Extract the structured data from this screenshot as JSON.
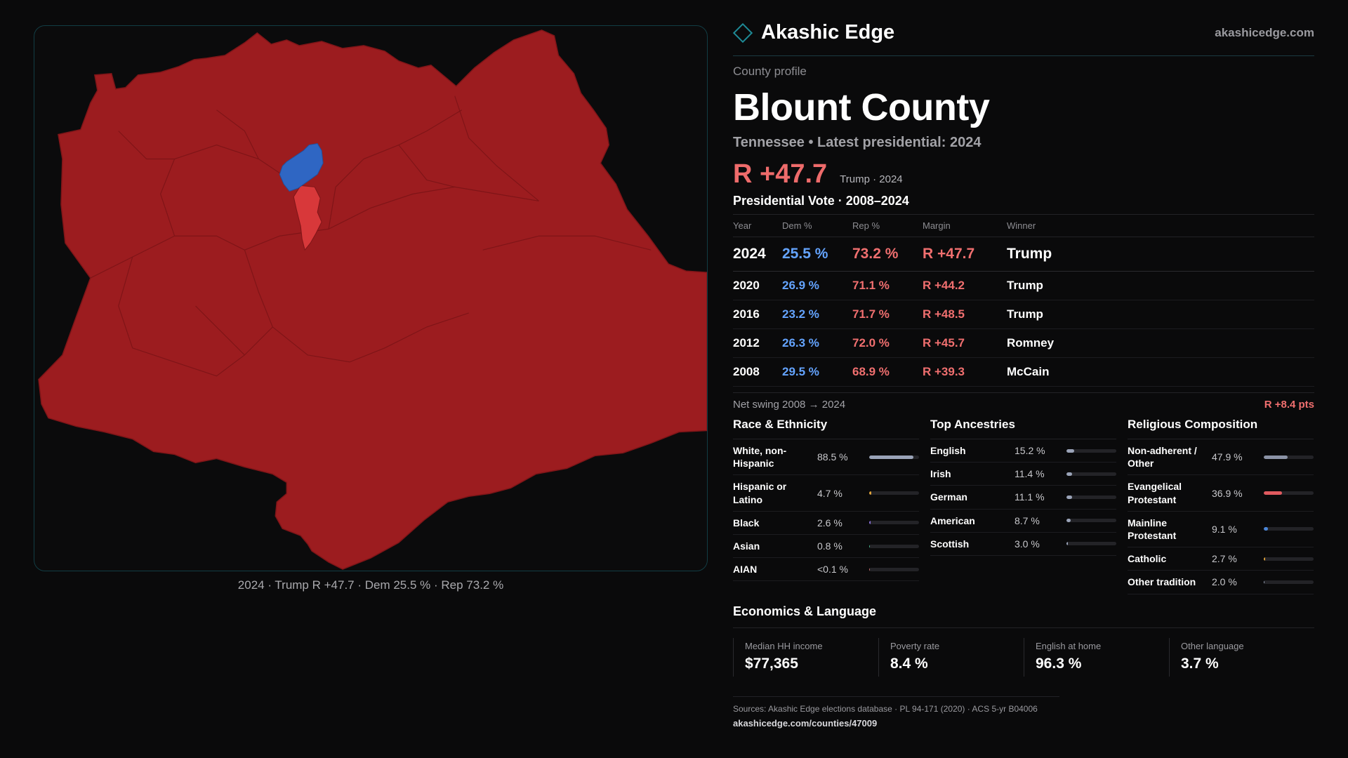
{
  "brand": {
    "name": "Akashic Edge",
    "url": "akashicedge.com"
  },
  "profile": {
    "eyebrow": "County profile",
    "county": "Blount County",
    "subtitle": "Tennessee • Latest presidential: 2024",
    "headline_margin": "R +47.7",
    "headline_note": "Trump · 2024"
  },
  "map": {
    "caption": "2024 · Trump R +47.7 · Dem 25.5 % · Rep 73.2 %",
    "colors": {
      "rep": "#9c1c1f",
      "dem": "#2f66c3",
      "rep_light": "#d8383a",
      "border": "#7f1518"
    }
  },
  "votes": {
    "title": "Presidential Vote · 2008–2024",
    "headers": {
      "year": "Year",
      "dem": "Dem %",
      "rep": "Rep %",
      "margin": "Margin",
      "winner": "Winner"
    },
    "rows": [
      {
        "year": "2024",
        "dem": "25.5 %",
        "rep": "73.2 %",
        "margin": "R +47.7",
        "winner": "Trump"
      },
      {
        "year": "2020",
        "dem": "26.9 %",
        "rep": "71.1 %",
        "margin": "R +44.2",
        "winner": "Trump"
      },
      {
        "year": "2016",
        "dem": "23.2 %",
        "rep": "71.7 %",
        "margin": "R +48.5",
        "winner": "Trump"
      },
      {
        "year": "2012",
        "dem": "26.3 %",
        "rep": "72.0 %",
        "margin": "R +45.7",
        "winner": "Romney"
      },
      {
        "year": "2008",
        "dem": "29.5 %",
        "rep": "68.9 %",
        "margin": "R +39.3",
        "winner": "McCain"
      }
    ],
    "swing_label": "Net swing 2008 → 2024",
    "swing_value": "R +8.4 pts"
  },
  "race": {
    "title": "Race & Ethnicity",
    "items": [
      {
        "label": "White, non-Hispanic",
        "value": "88.5 %",
        "pct": 88.5,
        "color": "#9aa3b8"
      },
      {
        "label": "Hispanic or Latino",
        "value": "4.7 %",
        "pct": 4.7,
        "color": "#e0a33a"
      },
      {
        "label": "Black",
        "value": "2.6 %",
        "pct": 2.6,
        "color": "#8a6fd8"
      },
      {
        "label": "Asian",
        "value": "0.8 %",
        "pct": 0.8,
        "color": "#46b08a"
      },
      {
        "label": "AIAN",
        "value": "<0.1 %",
        "pct": 0.1,
        "color": "#c26b6b"
      }
    ]
  },
  "ancestry": {
    "title": "Top Ancestries",
    "items": [
      {
        "label": "English",
        "value": "15.2 %",
        "pct": 15.2,
        "color": "#9aa3b8"
      },
      {
        "label": "Irish",
        "value": "11.4 %",
        "pct": 11.4,
        "color": "#9aa3b8"
      },
      {
        "label": "German",
        "value": "11.1 %",
        "pct": 11.1,
        "color": "#9aa3b8"
      },
      {
        "label": "American",
        "value": "8.7 %",
        "pct": 8.7,
        "color": "#9aa3b8"
      },
      {
        "label": "Scottish",
        "value": "3.0 %",
        "pct": 3.0,
        "color": "#9aa3b8"
      }
    ]
  },
  "religion": {
    "title": "Religious Composition",
    "items": [
      {
        "label": "Non-adherent / Other",
        "value": "47.9 %",
        "pct": 47.9,
        "color": "#8b93a6"
      },
      {
        "label": "Evangelical Protestant",
        "value": "36.9 %",
        "pct": 36.9,
        "color": "#e05a5f"
      },
      {
        "label": "Mainline Protestant",
        "value": "9.1 %",
        "pct": 9.1,
        "color": "#4a86d8"
      },
      {
        "label": "Catholic",
        "value": "2.7 %",
        "pct": 2.7,
        "color": "#e0a33a"
      },
      {
        "label": "Other tradition",
        "value": "2.0 %",
        "pct": 2.0,
        "color": "#9aa3b8"
      }
    ]
  },
  "economics": {
    "title": "Economics & Language",
    "cells": [
      {
        "label": "Median HH income",
        "value": "$77,365"
      },
      {
        "label": "Poverty rate",
        "value": "8.4 %"
      },
      {
        "label": "English at home",
        "value": "96.3 %"
      },
      {
        "label": "Other language",
        "value": "3.7 %"
      }
    ]
  },
  "sources": {
    "line": "Sources: Akashic Edge elections database · PL 94-171 (2020) · ACS 5-yr B04006",
    "url": "akashicedge.com/counties/47009"
  }
}
